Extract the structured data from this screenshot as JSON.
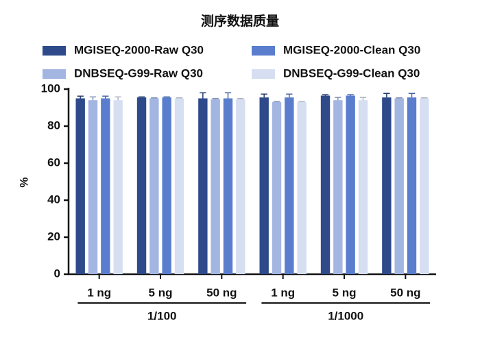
{
  "chart_data": {
    "type": "bar",
    "title": "测序数据质量",
    "y_label": "%",
    "categories": [
      "1 ng",
      "5 ng",
      "50 ng",
      "1 ng",
      "5 ng",
      "50 ng"
    ],
    "groups": [
      "1/100",
      "1/1000"
    ],
    "series": [
      {
        "name": "MGISEQ-2000-Raw Q30",
        "color": "#2e4a8b",
        "values": [
          95,
          95.5,
          95,
          95.5,
          96.5,
          95.5
        ],
        "errors": [
          1.2,
          0.3,
          3,
          1.8,
          0.5,
          2.2
        ]
      },
      {
        "name": "DNBSEQ-G99-Raw Q30",
        "color": "#a3b5e1",
        "values": [
          94,
          95,
          94.5,
          93,
          94,
          95
        ],
        "errors": [
          1.8,
          0.3,
          0.4,
          0.4,
          1.5,
          0.3
        ]
      },
      {
        "name": "MGISEQ-2000-Clean Q30",
        "color": "#5a7ecd",
        "values": [
          95,
          95.5,
          95,
          95.5,
          96.5,
          95.5
        ],
        "errors": [
          1.2,
          0.3,
          3,
          1.8,
          0.5,
          2.2
        ]
      },
      {
        "name": "DNBSEQ-G99-Clean Q30",
        "color": "#d6dff1",
        "values": [
          94,
          95,
          94.5,
          93,
          94,
          95
        ],
        "errors": [
          1.8,
          0.3,
          0.4,
          0.4,
          1.5,
          0.3
        ]
      }
    ],
    "ylim": [
      0,
      100
    ],
    "yticks": [
      0,
      20,
      40,
      60,
      80,
      100
    ]
  }
}
